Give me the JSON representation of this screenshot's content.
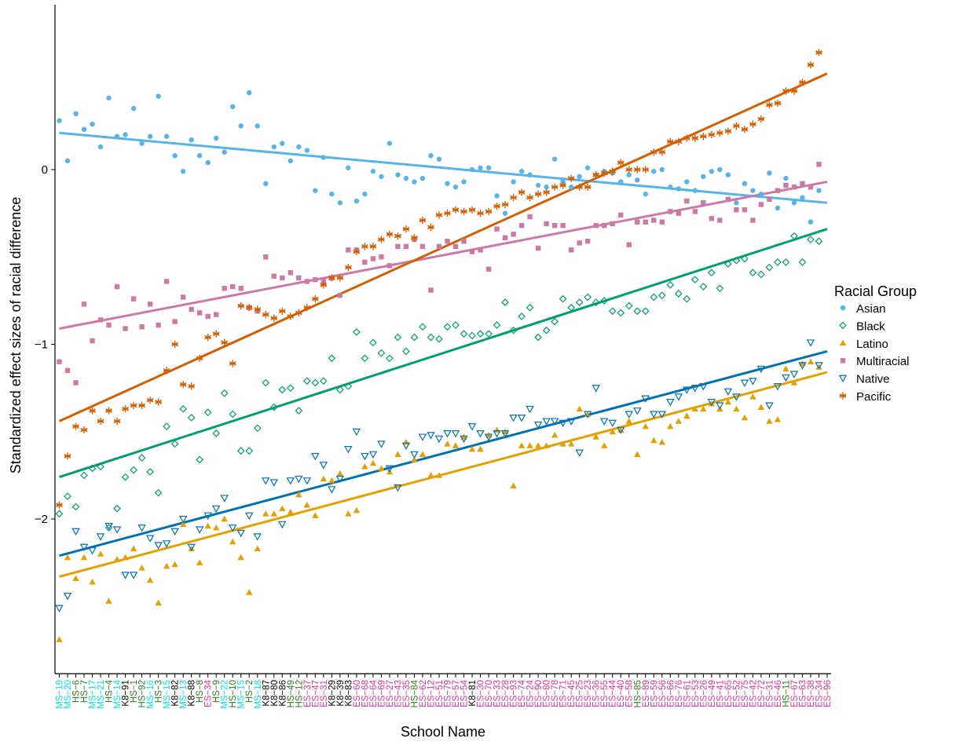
{
  "chart_data": {
    "type": "scatter",
    "title": "",
    "xlabel": "School Name",
    "ylabel": "Standardized effect sizes of racial difference",
    "ylim": [
      -2.9,
      0.92
    ],
    "yticks": [
      -2,
      -1,
      0
    ],
    "ytick_labels": [
      "−2",
      "−1",
      "0"
    ],
    "grid": false,
    "legend": {
      "title": "Racial Group",
      "position": "right"
    },
    "category_colors": {
      "MS": "#00e5ee",
      "HS": "#2e7d1e",
      "K8": "#000000",
      "ES": "#e6329a"
    },
    "categories": [
      "MS−19",
      "MS−20",
      "HS−6",
      "HS−7",
      "MS−17",
      "MS−21",
      "HS−4",
      "MS−14",
      "K8−91",
      "HS−1",
      "HS−92",
      "MS−16",
      "HS−3",
      "MS−15",
      "K8−82",
      "MS−13",
      "K8−88",
      "HS−8",
      "ES−34",
      "HS−9",
      "MS−22",
      "HS−10",
      "MS−15",
      "HS−2",
      "MS−18",
      "K8−87",
      "K8−80",
      "K8−86",
      "HS−49",
      "HS−12",
      "ES−37",
      "ES−47",
      "ES−31",
      "K8−29",
      "K8−39",
      "K8−83",
      "ES−60",
      "ES−68",
      "ES−64",
      "ES−69",
      "ES−27",
      "ES−43",
      "ES−35",
      "HS−84",
      "ES−62",
      "ES−12",
      "ES−51",
      "ES−79",
      "ES−57",
      "ES−54",
      "K8−81",
      "ES−30",
      "ES−70",
      "ES−33",
      "ES−28",
      "ES−93",
      "ES−74",
      "ES−24",
      "ES−90",
      "ES−80",
      "ES−78",
      "ES−71",
      "ES−45",
      "ES−25",
      "ES−23",
      "ES−36",
      "ES−55",
      "ES−44",
      "ES−40",
      "ES−58",
      "HS−85",
      "ES−89",
      "ES−59",
      "ES−56",
      "ES−66",
      "ES−76",
      "ES−61",
      "ES−53",
      "ES−26",
      "ES−49",
      "ES−41",
      "ES−65",
      "ES−52",
      "ES−75",
      "ES−42",
      "ES−72",
      "ES−31",
      "ES−46",
      "HS−11",
      "ES−67",
      "ES−63",
      "ES−38",
      "ES−34",
      "ES−96"
    ],
    "series": [
      {
        "name": "Asian",
        "color": "#56b4e9",
        "marker": "circle",
        "fit": [
          0.21,
          -0.19
        ],
        "values": [
          0.28,
          0.05,
          0.32,
          0.23,
          0.26,
          0.13,
          0.41,
          0.19,
          0.2,
          0.35,
          0.15,
          0.19,
          0.42,
          0.19,
          0.08,
          -0.01,
          0.17,
          0.08,
          0.04,
          0.18,
          0.1,
          0.36,
          0.25,
          0.44,
          0.25,
          -0.08,
          0.13,
          0.15,
          0.05,
          0.13,
          0.11,
          -0.12,
          0.07,
          -0.14,
          -0.19,
          0.01,
          -0.18,
          -0.14,
          -0.01,
          -0.04,
          0.15,
          -0.03,
          -0.05,
          -0.07,
          -0.05,
          0.08,
          0.06,
          -0.08,
          -0.1,
          -0.07,
          0.0,
          0.01,
          0.01,
          -0.15,
          -0.25,
          -0.07,
          -0.01,
          -0.03,
          -0.09,
          -0.1,
          0.06,
          -0.07,
          -0.1,
          -0.04,
          0.01,
          -0.03,
          -0.01,
          -0.02,
          -0.07,
          -0.03,
          -0.06,
          -0.14,
          -0.01,
          0.0,
          -0.1,
          -0.11,
          -0.07,
          -0.12,
          -0.04,
          -0.01,
          0.0,
          -0.03,
          -0.19,
          -0.08,
          -0.12,
          -0.14,
          -0.02,
          -0.22,
          -0.05,
          -0.19,
          -0.16,
          -0.3,
          -0.12
        ]
      },
      {
        "name": "Black",
        "color": "#009e73",
        "marker": "diamond",
        "fit": [
          -1.76,
          -0.34
        ],
        "values": [
          -1.97,
          -1.87,
          -1.93,
          -1.75,
          -1.71,
          -1.7,
          -2.05,
          -1.94,
          -1.76,
          -1.72,
          -1.65,
          -1.73,
          -1.85,
          -1.47,
          -1.57,
          -1.37,
          -1.42,
          -1.66,
          -1.39,
          -1.51,
          -1.28,
          -1.4,
          -1.61,
          -1.61,
          -1.48,
          -1.22,
          -1.36,
          -1.26,
          -1.25,
          -1.38,
          -1.21,
          -1.22,
          -1.21,
          -1.08,
          -1.26,
          -1.24,
          -0.93,
          -1.08,
          -0.99,
          -1.05,
          -1.08,
          -0.96,
          -1.04,
          -0.96,
          -0.9,
          -0.96,
          -0.97,
          -0.9,
          -0.89,
          -0.94,
          -0.95,
          -0.94,
          -0.94,
          -0.89,
          -0.76,
          -0.92,
          -0.84,
          -0.79,
          -0.96,
          -0.92,
          -0.87,
          -0.74,
          -0.79,
          -0.76,
          -0.73,
          -0.76,
          -0.75,
          -0.81,
          -0.82,
          -0.78,
          -0.81,
          -0.81,
          -0.73,
          -0.72,
          -0.66,
          -0.71,
          -0.74,
          -0.63,
          -0.67,
          -0.59,
          -0.68,
          -0.54,
          -0.52,
          -0.51,
          -0.59,
          -0.6,
          -0.56,
          -0.53,
          -0.53,
          -0.38,
          -0.53,
          -0.4,
          -0.41
        ]
      },
      {
        "name": "Latino",
        "color": "#e69f00",
        "marker": "triangle-up",
        "fit": [
          -2.33,
          -1.16
        ],
        "values": [
          -2.69,
          -2.22,
          -2.34,
          -2.22,
          -2.36,
          -2.2,
          -2.47,
          -2.23,
          -2.22,
          -2.17,
          -2.28,
          -2.35,
          -2.48,
          -2.27,
          -2.26,
          -2.03,
          -2.17,
          -2.25,
          -2.04,
          -2.05,
          -2.0,
          -2.13,
          -2.22,
          -2.42,
          -2.17,
          -1.97,
          -1.97,
          -1.94,
          -1.96,
          -1.86,
          -1.92,
          -1.98,
          -1.77,
          -1.78,
          -1.74,
          -1.97,
          -1.95,
          -1.7,
          -1.68,
          -1.71,
          -1.73,
          -1.63,
          -1.56,
          -1.66,
          -1.63,
          -1.75,
          -1.75,
          -1.57,
          -1.58,
          -1.53,
          -1.6,
          -1.6,
          -1.52,
          -1.49,
          -1.5,
          -1.81,
          -1.58,
          -1.58,
          -1.58,
          -1.58,
          -1.52,
          -1.57,
          -1.57,
          -1.37,
          -1.4,
          -1.53,
          -1.58,
          -1.5,
          -1.49,
          -1.44,
          -1.63,
          -1.47,
          -1.55,
          -1.56,
          -1.47,
          -1.44,
          -1.41,
          -1.37,
          -1.37,
          -1.34,
          -1.37,
          -1.33,
          -1.37,
          -1.42,
          -1.3,
          -1.36,
          -1.44,
          -1.43,
          -1.14,
          -1.22,
          -1.11,
          -1.1,
          -1.13
        ]
      },
      {
        "name": "Multiracial",
        "color": "#cc79a7",
        "marker": "square",
        "fit": [
          -0.91,
          -0.07
        ],
        "values": [
          -1.1,
          -1.15,
          -1.22,
          -0.77,
          -0.98,
          -0.86,
          -0.89,
          -0.67,
          -0.91,
          -0.74,
          -0.9,
          -0.77,
          -0.89,
          -0.64,
          -0.87,
          -0.73,
          -0.8,
          -0.82,
          -0.84,
          -0.83,
          -0.68,
          -0.67,
          -0.68,
          -0.79,
          -0.81,
          -0.5,
          -0.61,
          -0.62,
          -0.59,
          -0.62,
          -0.64,
          -0.63,
          -0.64,
          -0.62,
          -0.72,
          -0.46,
          -0.46,
          -0.53,
          -0.51,
          -0.5,
          -0.55,
          -0.44,
          -0.44,
          -0.4,
          -0.44,
          -0.69,
          -0.44,
          -0.41,
          -0.44,
          -0.41,
          -0.47,
          -0.46,
          -0.57,
          -0.34,
          -0.39,
          -0.37,
          -0.32,
          -0.27,
          -0.45,
          -0.31,
          -0.32,
          -0.32,
          -0.46,
          -0.42,
          -0.41,
          -0.32,
          -0.32,
          -0.31,
          -0.26,
          -0.43,
          -0.3,
          -0.3,
          -0.29,
          -0.3,
          -0.24,
          -0.25,
          -0.18,
          -0.24,
          -0.19,
          -0.28,
          -0.29,
          -0.17,
          -0.23,
          -0.23,
          -0.29,
          -0.2,
          -0.17,
          -0.12,
          -0.09,
          -0.1,
          -0.08,
          -0.1,
          0.03
        ]
      },
      {
        "name": "Native",
        "color": "#0072b2",
        "marker": "triangle-down",
        "fit": [
          -2.21,
          -1.04
        ],
        "values": [
          -2.51,
          -2.44,
          -2.07,
          -2.16,
          -2.18,
          -2.1,
          -2.04,
          -2.06,
          -2.32,
          -2.32,
          -2.05,
          -2.11,
          -2.15,
          -2.14,
          -2.07,
          -2.0,
          -2.16,
          -2.06,
          -1.98,
          -1.94,
          -1.88,
          -2.05,
          -2.08,
          -1.98,
          -2.1,
          -1.78,
          -1.79,
          -2.03,
          -1.78,
          -1.77,
          -1.78,
          -1.64,
          -1.69,
          -1.83,
          -1.77,
          -1.6,
          -1.5,
          -1.64,
          -1.63,
          -1.57,
          -1.71,
          -1.82,
          -1.58,
          -1.63,
          -1.53,
          -1.52,
          -1.54,
          -1.51,
          -1.51,
          -1.54,
          -1.47,
          -1.51,
          -1.53,
          -1.51,
          -1.51,
          -1.42,
          -1.42,
          -1.37,
          -1.46,
          -1.44,
          -1.44,
          -1.45,
          -1.44,
          -1.62,
          -1.4,
          -1.25,
          -1.44,
          -1.45,
          -1.49,
          -1.4,
          -1.38,
          -1.31,
          -1.4,
          -1.4,
          -1.33,
          -1.3,
          -1.26,
          -1.25,
          -1.24,
          -1.33,
          -1.35,
          -1.27,
          -1.3,
          -1.22,
          -1.21,
          -1.14,
          -1.35,
          -1.24,
          -1.19,
          -1.17,
          -1.12,
          -0.99,
          -1.12
        ]
      },
      {
        "name": "Pacific",
        "color": "#d55e00",
        "marker": "asterisk",
        "fit": [
          -1.44,
          0.55
        ],
        "values": [
          -1.92,
          -1.64,
          -1.47,
          -1.49,
          -1.38,
          -1.44,
          -1.38,
          -1.44,
          -1.37,
          -1.35,
          -1.35,
          -1.32,
          -1.33,
          -1.15,
          -1.0,
          -1.23,
          -1.24,
          -1.08,
          -0.96,
          -0.94,
          -0.99,
          -1.11,
          -0.78,
          -0.79,
          -0.8,
          -0.83,
          -0.85,
          -0.81,
          -0.84,
          -0.82,
          -0.79,
          -0.74,
          -0.66,
          -0.62,
          -0.62,
          -0.56,
          -0.47,
          -0.44,
          -0.44,
          -0.4,
          -0.37,
          -0.38,
          -0.34,
          -0.39,
          -0.29,
          -0.33,
          -0.26,
          -0.25,
          -0.23,
          -0.24,
          -0.23,
          -0.25,
          -0.24,
          -0.21,
          -0.2,
          -0.16,
          -0.13,
          -0.16,
          -0.14,
          -0.13,
          -0.1,
          -0.09,
          -0.05,
          -0.1,
          -0.1,
          -0.03,
          -0.02,
          -0.01,
          0.04,
          0.0,
          0.0,
          0.0,
          0.1,
          0.1,
          0.16,
          0.16,
          0.18,
          0.18,
          0.19,
          0.2,
          0.21,
          0.22,
          0.25,
          0.23,
          0.26,
          0.29,
          0.37,
          0.38,
          0.45,
          0.45,
          0.5,
          0.6,
          0.67
        ]
      }
    ]
  }
}
